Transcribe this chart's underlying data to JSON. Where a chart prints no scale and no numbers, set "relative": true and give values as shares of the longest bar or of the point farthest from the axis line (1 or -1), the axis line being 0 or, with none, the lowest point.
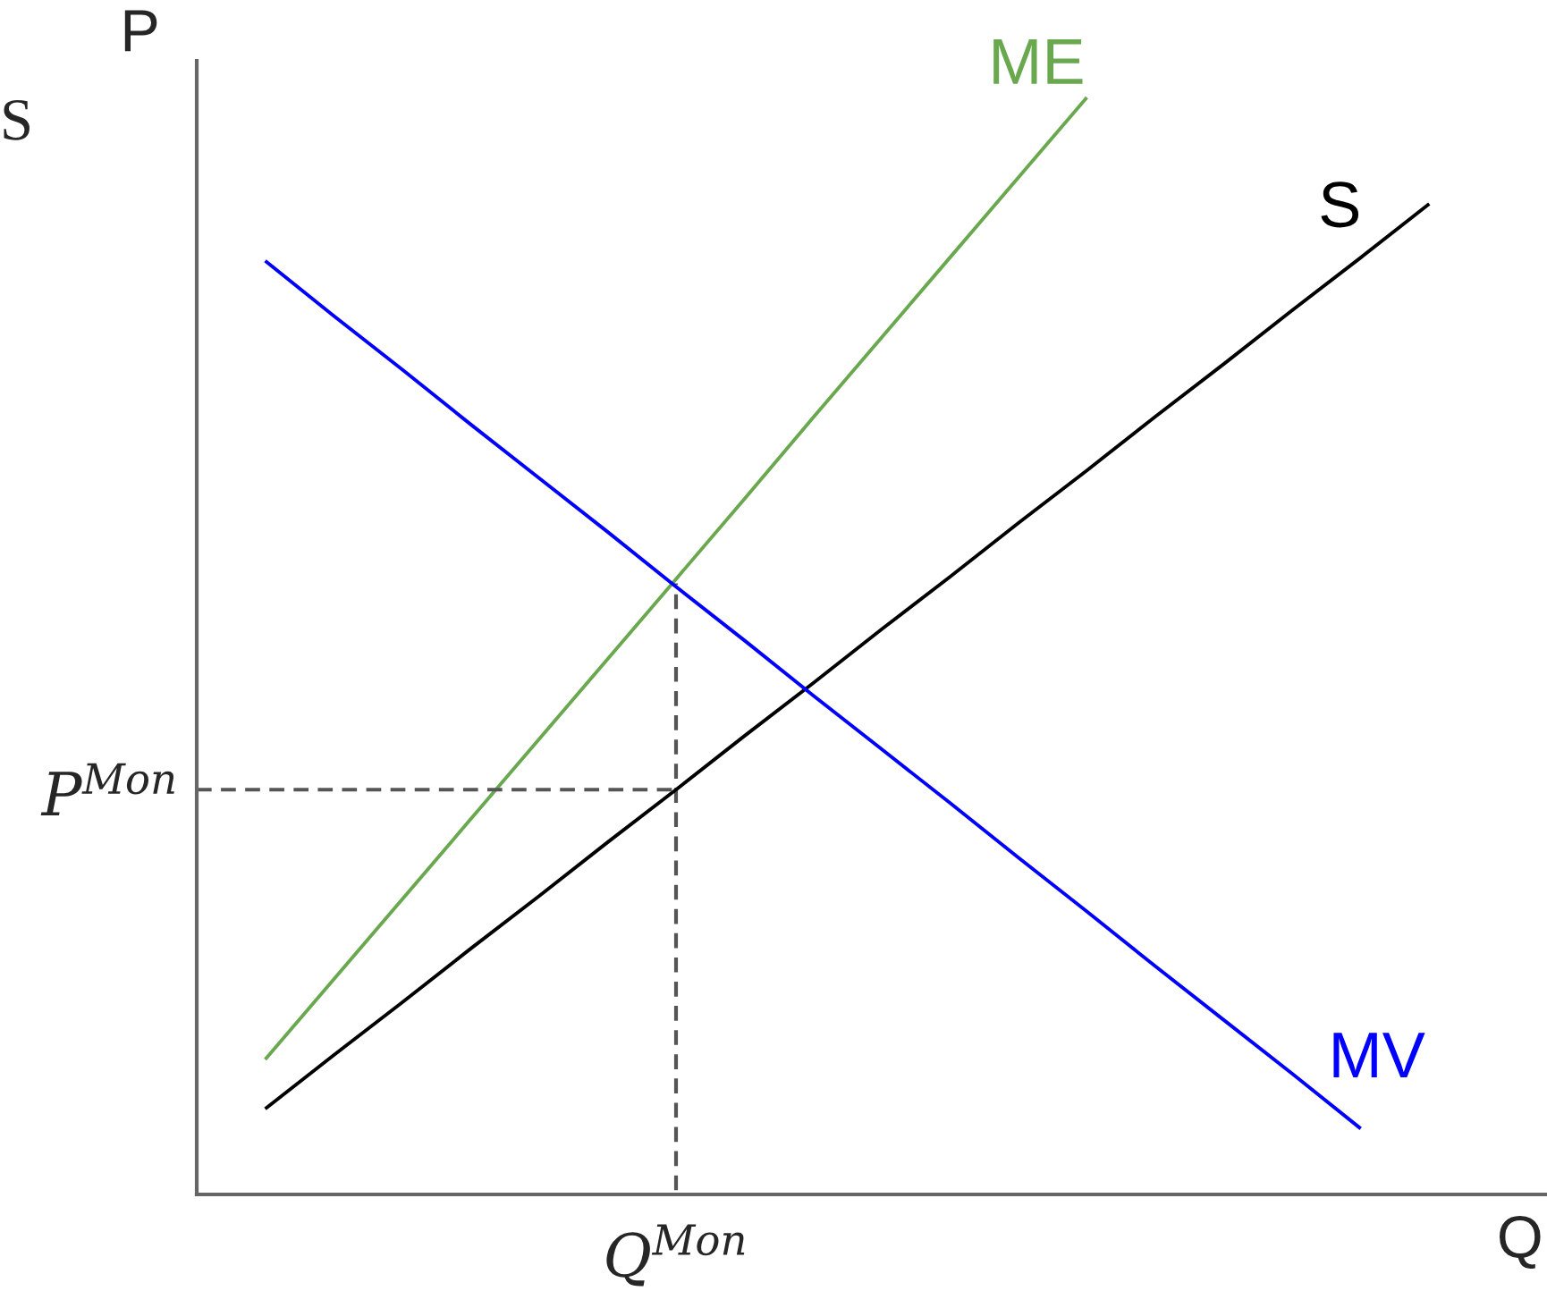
{
  "chart_data": {
    "type": "line",
    "relative": true,
    "xlabel": "Q",
    "ylabel": "P",
    "categories": [
      null,
      null,
      null,
      null,
      null,
      null,
      null,
      null,
      null,
      null,
      null,
      null,
      null,
      null,
      null,
      null,
      null,
      null,
      null,
      null
    ],
    "series": [
      {
        "name": "ME",
        "color": "#6aa84f",
        "values": [
          null,
          0.123,
          0.196,
          0.269,
          0.342,
          0.415,
          0.488,
          0.561,
          0.634,
          0.708,
          0.781,
          0.854,
          0.927,
          1.0,
          null,
          null,
          null,
          null,
          null,
          null
        ]
      },
      {
        "name": "S",
        "color": "#000000",
        "values": [
          null,
          0.078,
          0.127,
          0.175,
          0.224,
          0.272,
          0.321,
          0.369,
          0.418,
          0.466,
          0.515,
          0.563,
          0.612,
          0.66,
          0.709,
          0.757,
          0.806,
          0.854,
          0.903,
          null
        ]
      },
      {
        "name": "MV",
        "color": "#0000ff",
        "values": [
          null,
          0.851,
          0.801,
          0.752,
          0.702,
          0.653,
          0.604,
          0.554,
          0.505,
          0.455,
          0.406,
          0.357,
          0.307,
          0.258,
          0.208,
          0.159,
          0.11,
          0.06,
          null,
          null
        ]
      },
      {
        "color": "#555555",
        "line_style": "dashed",
        "values": [
          0.369,
          0.369,
          0.369,
          0.369,
          0.369,
          0.369,
          0.369,
          0.369,
          null,
          null,
          null,
          null,
          null,
          null,
          null,
          null,
          null,
          null,
          null,
          null
        ]
      },
      {
        "type": "step",
        "color": "#555555",
        "line_style": "dashed",
        "values": [
          null,
          null,
          null,
          null,
          null,
          null,
          0,
          0.557,
          null,
          null,
          null,
          null,
          null,
          null,
          null,
          null,
          null,
          null,
          null,
          null
        ]
      }
    ],
    "annotations": [
      "S",
      "P$^{Mon}$",
      "Q$^{Mon}$"
    ]
  }
}
